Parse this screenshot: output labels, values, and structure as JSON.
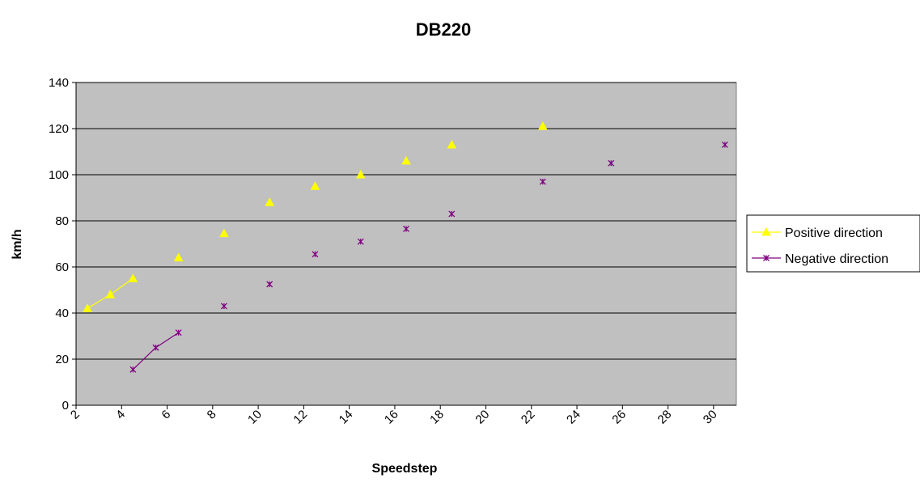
{
  "chart_data": {
    "type": "scatter",
    "title": "DB220",
    "xlabel": "Speedstep",
    "ylabel": "km/h",
    "xlim": [
      2,
      31
    ],
    "ylim": [
      0,
      140
    ],
    "x_ticks": [
      2,
      4,
      6,
      8,
      10,
      12,
      14,
      16,
      18,
      20,
      22,
      24,
      26,
      28,
      30
    ],
    "y_ticks": [
      0,
      20,
      40,
      60,
      80,
      100,
      120,
      140
    ],
    "grid": "horizontal",
    "legend": "right",
    "plot_background": "#c0c0c0",
    "series": [
      {
        "name": "Positive direction",
        "color": "#ffff00",
        "marker": "triangle",
        "points": [
          {
            "x": 2.5,
            "y": 42
          },
          {
            "x": 3.5,
            "y": 48
          },
          {
            "x": 4.5,
            "y": 55
          },
          {
            "x": 6.5,
            "y": 64
          },
          {
            "x": 8.5,
            "y": 74.5
          },
          {
            "x": 10.5,
            "y": 88
          },
          {
            "x": 12.5,
            "y": 95
          },
          {
            "x": 14.5,
            "y": 100
          },
          {
            "x": 16.5,
            "y": 106
          },
          {
            "x": 18.5,
            "y": 113
          },
          {
            "x": 22.5,
            "y": 121
          }
        ],
        "connected_segments": [
          [
            0,
            2
          ]
        ]
      },
      {
        "name": "Negative direction",
        "color": "#800080",
        "marker": "star",
        "points": [
          {
            "x": 4.5,
            "y": 15.5
          },
          {
            "x": 5.5,
            "y": 25
          },
          {
            "x": 6.5,
            "y": 31.5
          },
          {
            "x": 8.5,
            "y": 43
          },
          {
            "x": 10.5,
            "y": 52.5
          },
          {
            "x": 12.5,
            "y": 65.5
          },
          {
            "x": 14.5,
            "y": 71
          },
          {
            "x": 16.5,
            "y": 76.5
          },
          {
            "x": 18.5,
            "y": 83
          },
          {
            "x": 22.5,
            "y": 97
          },
          {
            "x": 25.5,
            "y": 105
          },
          {
            "x": 30.5,
            "y": 113
          }
        ],
        "connected_segments": [
          [
            0,
            2
          ]
        ]
      }
    ]
  }
}
